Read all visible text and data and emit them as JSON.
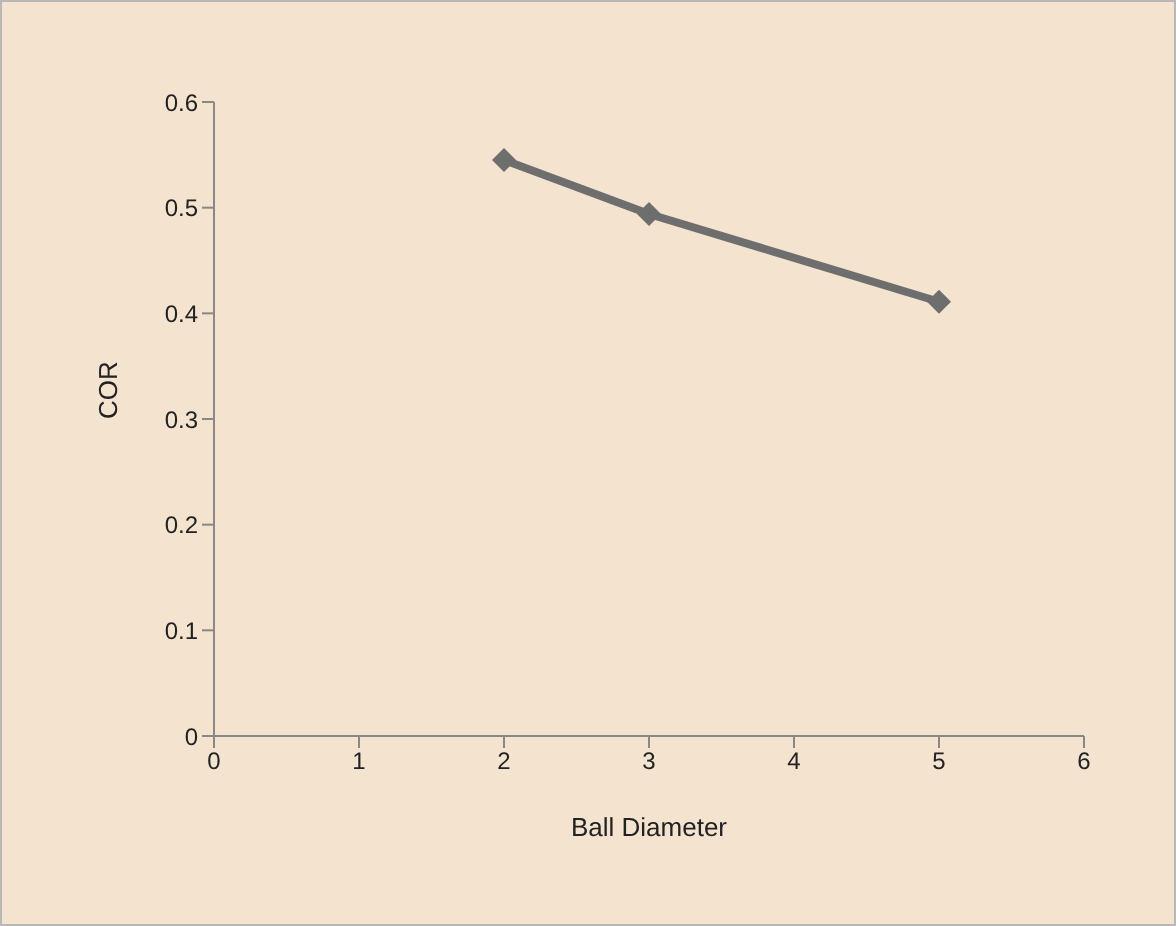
{
  "chart_data": {
    "type": "line",
    "xlabel": "Ball Diameter",
    "ylabel": "COR",
    "x": [
      2,
      3,
      5
    ],
    "series": [
      {
        "color": "#6e6e6e",
        "values": [
          0.545,
          0.494,
          0.411
        ]
      }
    ],
    "xlim": [
      0,
      6
    ],
    "xticks": [
      0,
      1,
      2,
      3,
      4,
      5,
      6
    ],
    "ylim": [
      0,
      0.6
    ],
    "yticks": [
      0,
      0.1,
      0.2,
      0.3,
      0.4,
      0.5,
      0.6
    ],
    "grid": false,
    "legend": false,
    "marker": "diamond",
    "line_style": "solid"
  }
}
